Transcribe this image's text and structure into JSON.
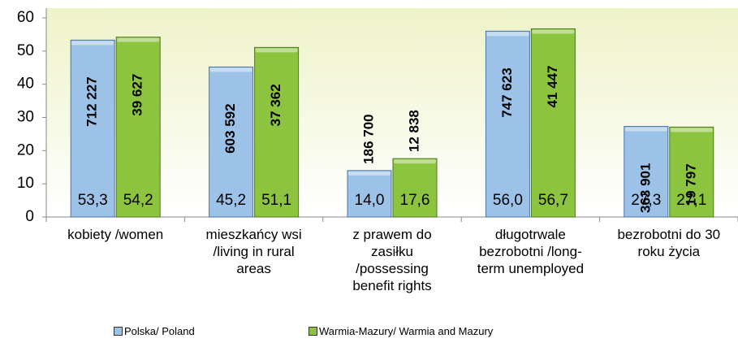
{
  "chart_data": {
    "type": "bar",
    "categories": [
      "kobiety /women",
      "mieszkańcy wsi /living in rural areas",
      "z prawem do zasiłku /possessing benefit rights",
      "długotrwale bezrobotni /long-term unemployed",
      "bezrobotni do 30 roku życia"
    ],
    "series": [
      {
        "name": "Polska/ Poland",
        "color": "#9cc2e8",
        "values": [
          53.3,
          45.2,
          14.0,
          56.0,
          27.3
        ],
        "value_labels": [
          "53,3",
          "45,2",
          "14,0",
          "56,0",
          "27,3"
        ],
        "counts": [
          712227,
          603592,
          186700,
          747623,
          363901
        ],
        "count_labels": [
          "712 227",
          "603 592",
          "186 700",
          "747 623",
          "363 901"
        ]
      },
      {
        "name": "Warmia-Mazury/ Warmia and Mazury",
        "color": "#8cc43f",
        "values": [
          54.2,
          51.1,
          17.6,
          56.7,
          27.1
        ],
        "value_labels": [
          "54,2",
          "51,1",
          "17,6",
          "56,7",
          "27,1"
        ],
        "counts": [
          39627,
          37362,
          12838,
          41447,
          19797
        ],
        "count_labels": [
          "39 627",
          "37 362",
          "12 838",
          "41 447",
          "19 797"
        ]
      }
    ],
    "ylim": [
      0,
      60
    ],
    "yticks": [
      0,
      10,
      20,
      30,
      40,
      50,
      60
    ],
    "grid": false
  }
}
